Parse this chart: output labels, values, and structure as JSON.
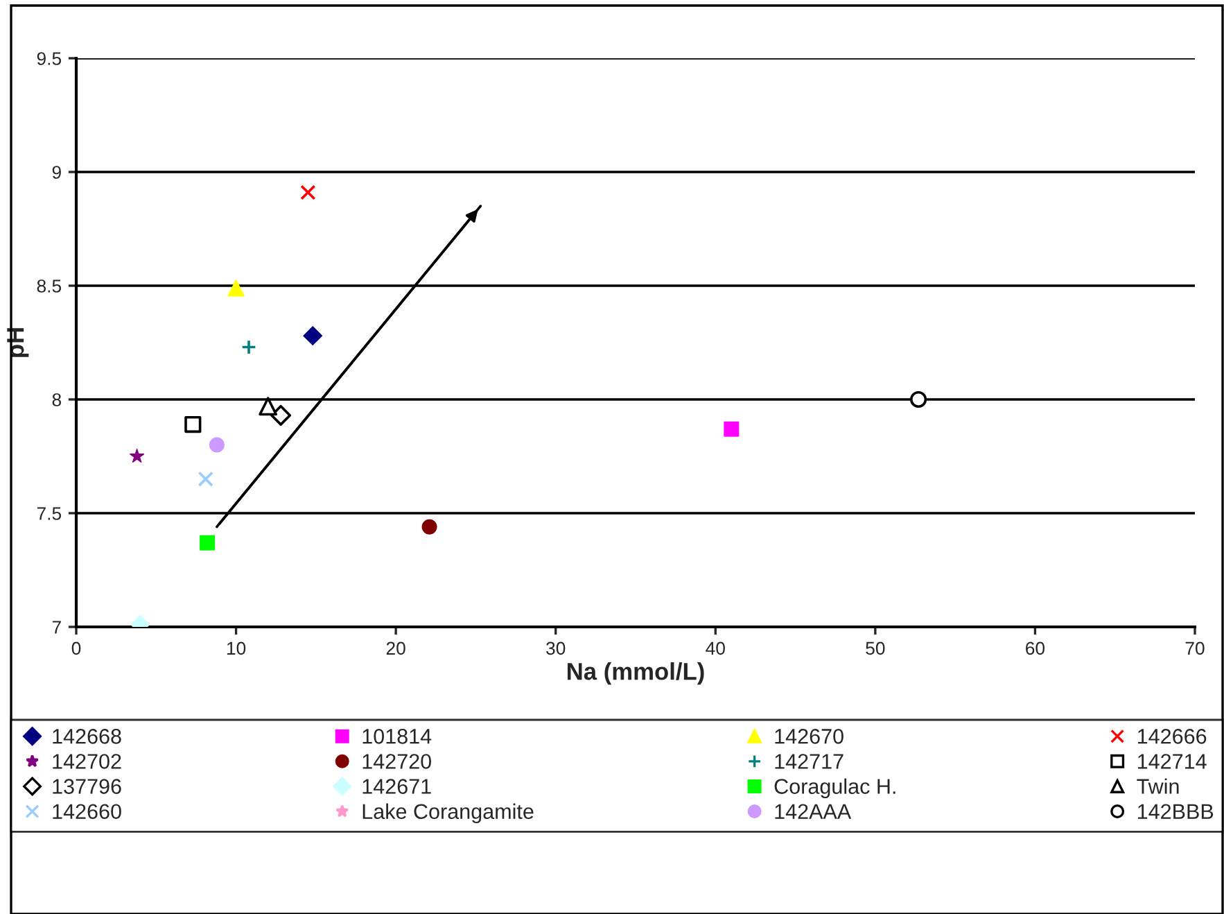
{
  "chart_data": {
    "type": "scatter",
    "xlabel": "Na (mmol/L)",
    "ylabel": "pH",
    "xlim": [
      0,
      70
    ],
    "xticks": [
      0,
      10,
      20,
      30,
      40,
      50,
      60,
      70
    ],
    "ylim": [
      7,
      9.5
    ],
    "yticks": [
      7,
      7.5,
      8,
      8.5,
      9,
      9.5
    ],
    "grid": "y",
    "legend": "bottom",
    "series": [
      {
        "name": "142668",
        "color": "#000080",
        "marker": "diamond",
        "x": [
          14.8
        ],
        "values": [
          8.28
        ]
      },
      {
        "name": "101814",
        "color": "#ff00ff",
        "marker": "square",
        "x": [
          41
        ],
        "values": [
          7.87
        ]
      },
      {
        "name": "142670",
        "color": "#ffff00",
        "marker": "triangle",
        "x": [
          10.0
        ],
        "values": [
          8.49
        ]
      },
      {
        "name": "142666",
        "color": "#ff0000",
        "marker": "cross",
        "x": [
          14.5
        ],
        "values": [
          8.91
        ]
      },
      {
        "name": "142702",
        "color": "#800080",
        "marker": "star",
        "x": [
          3.8
        ],
        "values": [
          7.75
        ]
      },
      {
        "name": "142720",
        "color": "#800000",
        "marker": "circle",
        "x": [
          22.1
        ],
        "values": [
          7.44
        ]
      },
      {
        "name": "142717",
        "color": "#008080",
        "marker": "plus",
        "x": [
          10.8
        ],
        "values": [
          8.23
        ]
      },
      {
        "name": "142714",
        "color": "#000000",
        "marker": "square",
        "x": [
          7.3
        ],
        "values": [
          7.89
        ]
      },
      {
        "name": "137796",
        "color": "#000000",
        "marker": "diamond",
        "x": [
          12.8
        ],
        "values": [
          7.93
        ]
      },
      {
        "name": "142671",
        "color": "#ccffff",
        "marker": "diamond",
        "x": [
          4.0
        ],
        "values": [
          7.01
        ]
      },
      {
        "name": "Coragulac H.",
        "color": "#00ff00",
        "marker": "square",
        "x": [
          8.2
        ],
        "values": [
          7.37
        ]
      },
      {
        "name": "Twin",
        "color": "#000000",
        "marker": "triangle",
        "x": [
          12.0
        ],
        "values": [
          7.97
        ]
      },
      {
        "name": "142660",
        "color": "#99ccff",
        "marker": "cross",
        "x": [
          8.1
        ],
        "values": [
          7.65
        ]
      },
      {
        "name": "Lake Corangamite",
        "color": "#ff99cc",
        "marker": "star",
        "x": [
          null
        ],
        "values": [
          null
        ]
      },
      {
        "name": "142AAA",
        "color": "#cc99ff",
        "marker": "circle",
        "x": [
          8.8
        ],
        "values": [
          7.8
        ]
      },
      {
        "name": "142BBB",
        "color": "#000000",
        "marker": "circle",
        "x": [
          52.7
        ],
        "values": [
          8.0
        ]
      },
      {
        "type": "line",
        "color": "#000000",
        "x": [
          8.8,
          25.3
        ],
        "values": [
          7.44,
          8.85
        ]
      }
    ]
  }
}
